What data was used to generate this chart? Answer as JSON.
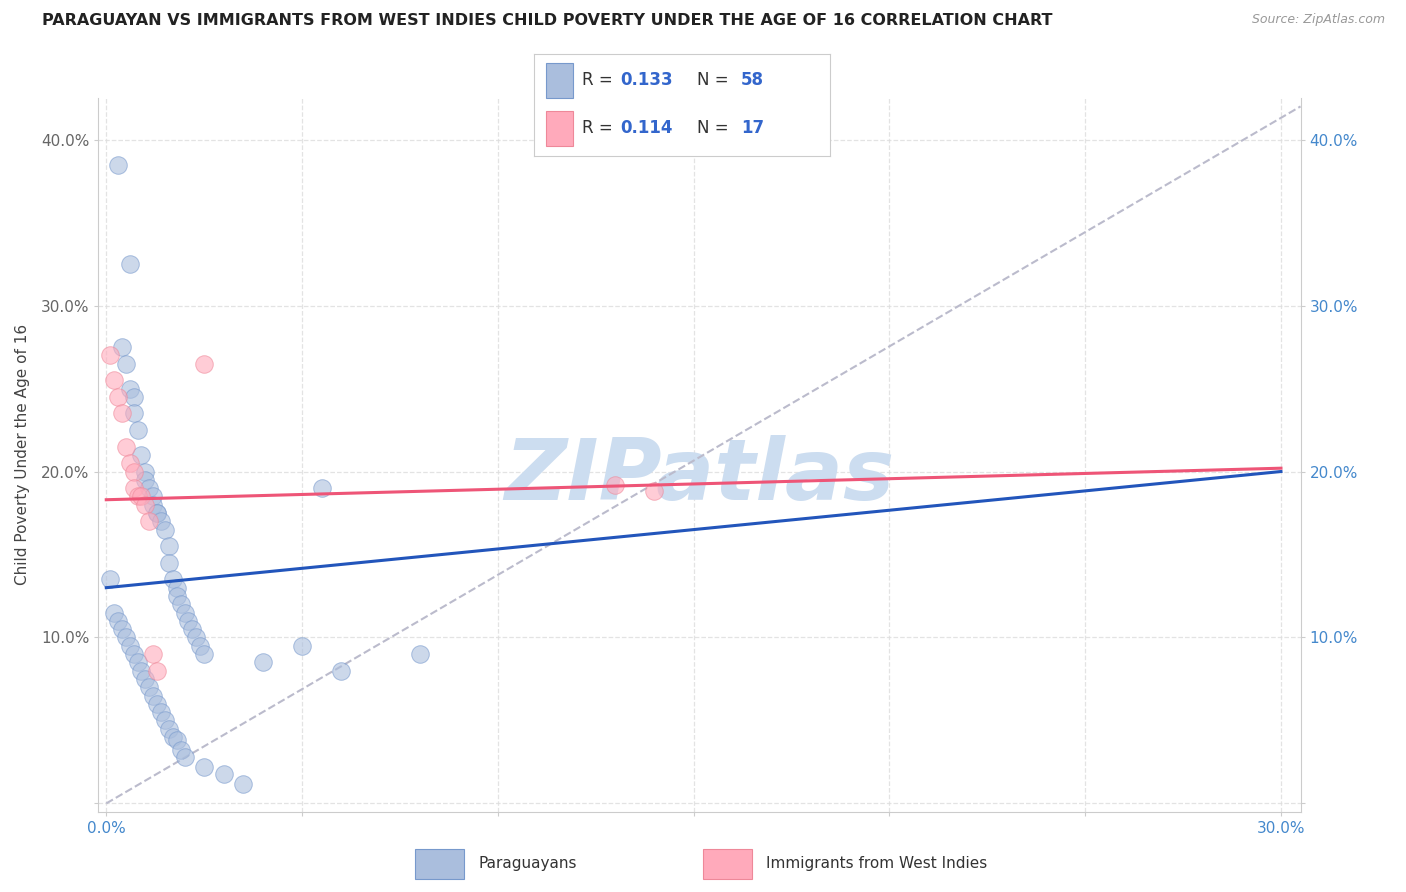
{
  "title": "PARAGUAYAN VS IMMIGRANTS FROM WEST INDIES CHILD POVERTY UNDER THE AGE OF 16 CORRELATION CHART",
  "source": "Source: ZipAtlas.com",
  "ylabel": "Child Poverty Under the Age of 16",
  "xlim": [
    -0.002,
    0.305
  ],
  "ylim": [
    -0.005,
    0.425
  ],
  "xtick_vals": [
    0.0,
    0.05,
    0.1,
    0.15,
    0.2,
    0.25,
    0.3
  ],
  "xtick_labels_show": [
    "0.0%",
    "",
    "",
    "",
    "",
    "",
    "30.0%"
  ],
  "ytick_vals": [
    0.0,
    0.1,
    0.2,
    0.3,
    0.4
  ],
  "ytick_labels_left": [
    "",
    "10.0%",
    "20.0%",
    "30.0%",
    "40.0%"
  ],
  "ytick_labels_right": [
    "",
    "10.0%",
    "20.0%",
    "30.0%",
    "40.0%"
  ],
  "blue_fill": "#AABEDD",
  "blue_edge": "#7799CC",
  "pink_fill": "#FFAABB",
  "pink_edge": "#EE8899",
  "trend_blue": "#2255BB",
  "trend_pink": "#EE5577",
  "trend_gray": "#BBBBCC",
  "legend_label1": "Paraguayans",
  "legend_label2": "Immigrants from West Indies",
  "watermark": "ZIPatlas",
  "blue_x": [
    0.003,
    0.006,
    0.004,
    0.005,
    0.006,
    0.007,
    0.007,
    0.008,
    0.009,
    0.01,
    0.01,
    0.011,
    0.012,
    0.012,
    0.013,
    0.013,
    0.014,
    0.015,
    0.016,
    0.016,
    0.017,
    0.018,
    0.018,
    0.019,
    0.02,
    0.021,
    0.022,
    0.023,
    0.024,
    0.025,
    0.002,
    0.003,
    0.004,
    0.005,
    0.006,
    0.007,
    0.008,
    0.009,
    0.01,
    0.011,
    0.012,
    0.013,
    0.014,
    0.015,
    0.016,
    0.017,
    0.018,
    0.019,
    0.02,
    0.025,
    0.03,
    0.035,
    0.04,
    0.05,
    0.055,
    0.06,
    0.08,
    0.001
  ],
  "blue_y": [
    0.385,
    0.325,
    0.275,
    0.265,
    0.25,
    0.245,
    0.235,
    0.225,
    0.21,
    0.2,
    0.195,
    0.19,
    0.185,
    0.18,
    0.175,
    0.175,
    0.17,
    0.165,
    0.155,
    0.145,
    0.135,
    0.13,
    0.125,
    0.12,
    0.115,
    0.11,
    0.105,
    0.1,
    0.095,
    0.09,
    0.115,
    0.11,
    0.105,
    0.1,
    0.095,
    0.09,
    0.085,
    0.08,
    0.075,
    0.07,
    0.065,
    0.06,
    0.055,
    0.05,
    0.045,
    0.04,
    0.038,
    0.032,
    0.028,
    0.022,
    0.018,
    0.012,
    0.085,
    0.095,
    0.19,
    0.08,
    0.09,
    0.135
  ],
  "pink_x": [
    0.001,
    0.002,
    0.003,
    0.004,
    0.005,
    0.006,
    0.007,
    0.007,
    0.008,
    0.009,
    0.01,
    0.011,
    0.012,
    0.013,
    0.13,
    0.14,
    0.025
  ],
  "pink_y": [
    0.27,
    0.255,
    0.245,
    0.235,
    0.215,
    0.205,
    0.2,
    0.19,
    0.185,
    0.185,
    0.18,
    0.17,
    0.09,
    0.08,
    0.192,
    0.188,
    0.265
  ],
  "blue_trend": [
    0.0,
    0.3,
    0.13,
    0.2
  ],
  "pink_trend": [
    0.0,
    0.3,
    0.183,
    0.202
  ],
  "gray_trend": [
    0.0,
    0.305,
    0.0,
    0.42
  ],
  "bg_color": "#FFFFFF",
  "grid_color": "#DDDDDD",
  "title_color": "#222222",
  "source_color": "#999999",
  "left_tick_color": "#666666",
  "right_tick_color": "#4488CC",
  "legend_val_color": "#3366CC",
  "legend_text_color": "#333333",
  "legend_R1": "0.133",
  "legend_N1": "58",
  "legend_R2": "0.114",
  "legend_N2": "17"
}
